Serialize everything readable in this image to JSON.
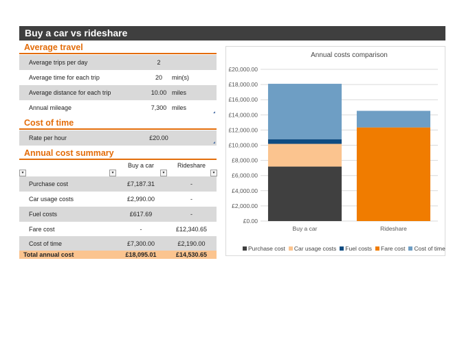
{
  "sheet": {
    "title": "Buy a car vs rideshare"
  },
  "average_travel": {
    "heading": "Average travel",
    "rows": [
      {
        "label": "Average trips per day",
        "value": "2",
        "unit": ""
      },
      {
        "label": "Average time for each trip",
        "value": "20",
        "unit": "min(s)"
      },
      {
        "label": "Average distance for each trip",
        "value": "10.00",
        "unit": "miles"
      },
      {
        "label": "Annual mileage",
        "value": "7,300",
        "unit": "miles"
      }
    ]
  },
  "cost_of_time": {
    "heading": "Cost of time",
    "rows": [
      {
        "label": "Rate per hour",
        "value": "£20.00"
      }
    ]
  },
  "summary": {
    "heading": "Annual cost summary",
    "col_buy": "Buy a car",
    "col_ride": "Rideshare",
    "filter_glyph": "▾",
    "rows": [
      {
        "label": "Purchase cost",
        "buy": "£7,187.31",
        "ride": "-"
      },
      {
        "label": "Car usage costs",
        "buy": "£2,990.00",
        "ride": "-"
      },
      {
        "label": "Fuel costs",
        "buy": "£617.69",
        "ride": "-"
      },
      {
        "label": "Fare cost",
        "buy": "-",
        "ride": "£12,340.65"
      },
      {
        "label": "Cost of time",
        "buy": "£7,300.00",
        "ride": "£2,190.00"
      }
    ],
    "total": {
      "label": "Total annual cost",
      "buy": "£18,095.01",
      "ride": "£14,530.65"
    }
  },
  "chart_data": {
    "type": "bar",
    "stacked": true,
    "title": "Annual costs comparison",
    "categories": [
      "Buy a car",
      "Rideshare"
    ],
    "series": [
      {
        "name": "Purchase cost",
        "values": [
          7187.31,
          0
        ],
        "color": "#404040"
      },
      {
        "name": "Car usage costs",
        "values": [
          2990.0,
          0
        ],
        "color": "#fbc48f"
      },
      {
        "name": "Fuel costs",
        "values": [
          617.69,
          0
        ],
        "color": "#0f4c81"
      },
      {
        "name": "Fare cost",
        "values": [
          0,
          12340.65
        ],
        "color": "#f07c00"
      },
      {
        "name": "Cost of time",
        "values": [
          7300.0,
          2190.0
        ],
        "color": "#6e9ec4"
      }
    ],
    "ylim": [
      0,
      20000
    ],
    "yticks": [
      "£0.00",
      "£2,000.00",
      "£4,000.00",
      "£6,000.00",
      "£8,000.00",
      "£10,000.00",
      "£12,000.00",
      "£14,000.00",
      "£16,000.00",
      "£18,000.00",
      "£20,000.00"
    ],
    "xlabel": "",
    "ylabel": "",
    "legend": "bottom"
  }
}
